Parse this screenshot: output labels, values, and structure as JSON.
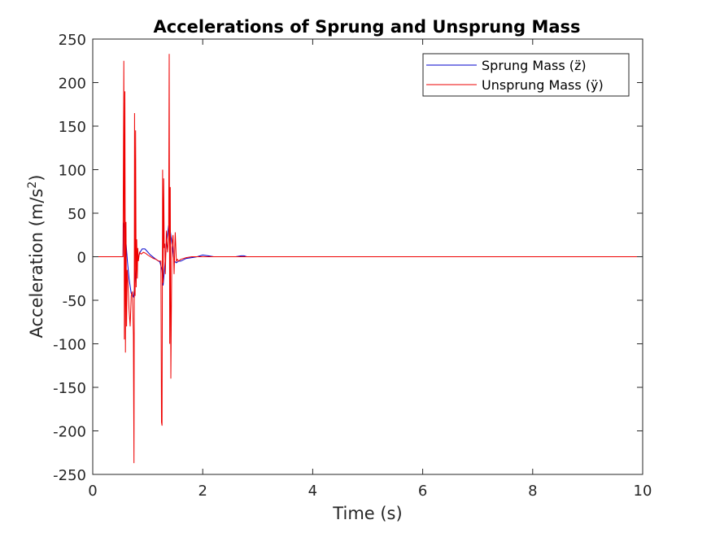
{
  "chart_data": {
    "type": "line",
    "title": "Accelerations of Sprung and Unsprung Mass",
    "xlabel": "Time (s)",
    "ylabel": "Acceleration (m/s",
    "ylabel_superscript": "2",
    "ylabel_close": ")",
    "xlim": [
      0,
      10
    ],
    "ylim": [
      -250,
      250
    ],
    "xticks": [
      0,
      2,
      4,
      6,
      8,
      10
    ],
    "yticks": [
      -250,
      -200,
      -150,
      -100,
      -50,
      0,
      50,
      100,
      150,
      200,
      250
    ],
    "grid": false,
    "legend_position": "top-right",
    "series": [
      {
        "name": "Sprung Mass (z̈)",
        "color": "#0000cc",
        "x": [
          0,
          0.55,
          0.56,
          0.57,
          0.6,
          0.63,
          0.66,
          0.7,
          0.74,
          0.77,
          0.79,
          0.82,
          0.86,
          0.9,
          0.95,
          1.05,
          1.15,
          1.22,
          1.26,
          1.28,
          1.31,
          1.34,
          1.38,
          1.41,
          1.44,
          1.48,
          1.52,
          1.56,
          1.6,
          1.7,
          1.8,
          1.9,
          2.0,
          2.1,
          2.2,
          2.4,
          2.6,
          2.7,
          2.75,
          2.8,
          3.0,
          10
        ],
        "y": [
          0,
          0,
          38,
          37,
          20,
          -5,
          -25,
          -42,
          -46,
          -30,
          -15,
          -3,
          5,
          9,
          9,
          2,
          -3,
          -6,
          -15,
          -33,
          -10,
          15,
          36,
          30,
          15,
          -5,
          -7,
          -5,
          -5,
          -2,
          -1,
          0,
          2,
          1,
          0,
          0,
          0,
          1,
          1,
          0,
          0,
          0
        ]
      },
      {
        "name": "Unsprung Mass (ÿ)",
        "color": "#ee0000",
        "x": [
          0,
          0.55,
          0.565,
          0.575,
          0.585,
          0.595,
          0.605,
          0.615,
          0.625,
          0.64,
          0.66,
          0.68,
          0.7,
          0.72,
          0.74,
          0.75,
          0.76,
          0.77,
          0.78,
          0.79,
          0.8,
          0.81,
          0.82,
          0.83,
          0.85,
          0.88,
          0.92,
          0.96,
          1.0,
          1.05,
          1.1,
          1.15,
          1.2,
          1.24,
          1.25,
          1.26,
          1.27,
          1.28,
          1.29,
          1.3,
          1.31,
          1.32,
          1.34,
          1.36,
          1.38,
          1.39,
          1.4,
          1.41,
          1.42,
          1.43,
          1.44,
          1.45,
          1.46,
          1.48,
          1.5,
          1.52,
          1.54,
          1.56,
          1.6,
          1.7,
          1.8,
          2.0,
          2.2,
          10
        ],
        "y": [
          0,
          0,
          225,
          -95,
          190,
          -110,
          40,
          -80,
          -15,
          -30,
          -60,
          -80,
          -45,
          -40,
          -90,
          -237,
          165,
          -45,
          145,
          -35,
          20,
          -25,
          10,
          -5,
          5,
          3,
          5,
          4,
          2,
          0,
          -2,
          -3,
          -5,
          -5,
          -190,
          -194,
          100,
          -30,
          90,
          10,
          15,
          -20,
          30,
          5,
          20,
          233,
          -100,
          80,
          -140,
          -60,
          10,
          20,
          25,
          -20,
          28,
          -5,
          -3,
          -5,
          -3,
          -1,
          0,
          0,
          0,
          0
        ]
      }
    ]
  }
}
